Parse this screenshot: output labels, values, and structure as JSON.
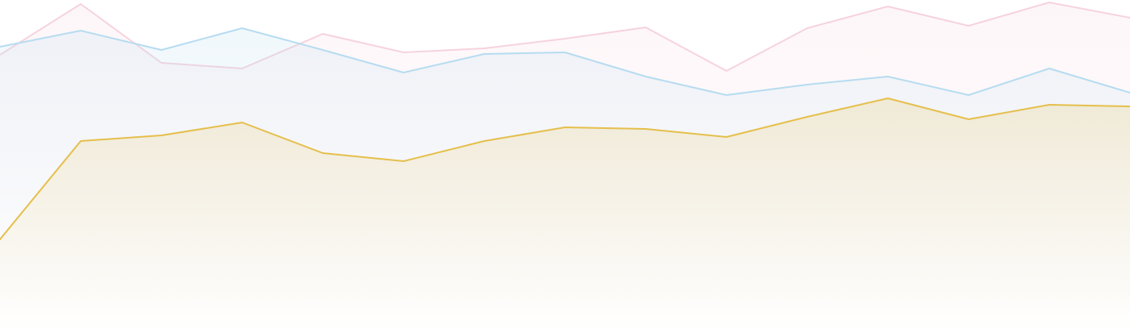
{
  "chart_data": {
    "type": "area",
    "categories": [
      null,
      null,
      null,
      null,
      null,
      null,
      null,
      null,
      null,
      null,
      null,
      null,
      null,
      null,
      null
    ],
    "ylim": [
      0,
      412
    ],
    "series": [
      {
        "color": "#f6d3de",
        "values": [
          344,
          407,
          334,
          327,
          370,
          347,
          352,
          364,
          378,
          324,
          377,
          404,
          380,
          409,
          390
        ]
      },
      {
        "color": "#b6dcf0",
        "values": [
          354,
          374,
          350,
          377,
          350,
          322,
          345,
          347,
          317,
          294,
          307,
          317,
          294,
          327,
          297
        ]
      },
      {
        "color": "#e5bf4c",
        "values": [
          115,
          237,
          244,
          260,
          222,
          212,
          237,
          254,
          252,
          242,
          267,
          290,
          264,
          282,
          280
        ]
      }
    ]
  }
}
